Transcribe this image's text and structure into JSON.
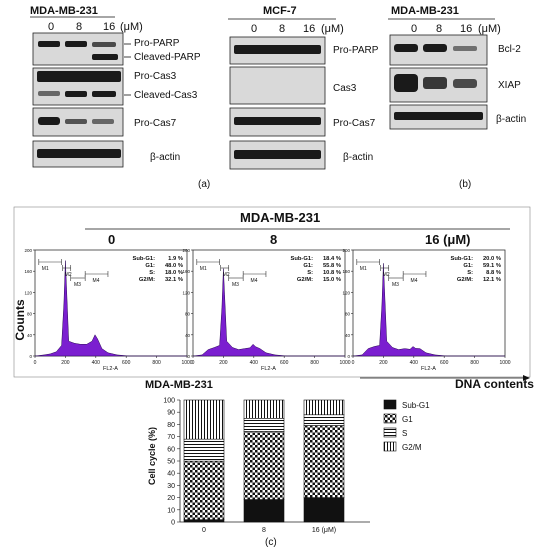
{
  "panel_a": {
    "title": "MDA-MB-231",
    "doses": [
      "0",
      "8",
      "16"
    ],
    "unit": "(μM)",
    "labels": {
      "pro_parp": "Pro-PARP",
      "cleaved_parp": "Cleaved-PARP",
      "pro_cas3": "Pro-Cas3",
      "cleaved_cas3": "Cleaved-Cas3",
      "pro_cas7": "Pro-Cas7",
      "beta_actin": "β-actin"
    },
    "caption": "(a)"
  },
  "panel_mcf7": {
    "title": "MCF-7",
    "doses": [
      "0",
      "8",
      "16"
    ],
    "unit": "(μM)",
    "labels": {
      "pro_parp": "Pro-PARP",
      "cas3": "Cas3",
      "pro_cas7": "Pro-Cas7",
      "beta_actin": "β-actin"
    }
  },
  "panel_b": {
    "title": "MDA-MB-231",
    "doses": [
      "0",
      "8",
      "16"
    ],
    "unit": "(μM)",
    "labels": {
      "bcl2": "Bcl-2",
      "xiap": "XIAP",
      "beta_actin": "β-actin"
    },
    "caption": "(b)"
  },
  "panel_c_flow": {
    "title": "MDA-MB-231",
    "y_label": "Counts",
    "x_label": "DNA contents",
    "sub_label": "MDA-MB-231",
    "fl_label": "FL2-A",
    "gate_labels": [
      "M1",
      "M2",
      "M3",
      "M4"
    ],
    "x_ticks": [
      "0",
      "200",
      "400",
      "600",
      "800",
      "1000"
    ],
    "y_ticks": [
      "0",
      "40",
      "80",
      "120",
      "160",
      "200"
    ],
    "histograms": [
      {
        "dose": "0",
        "stats": [
          [
            "Sub-G1:",
            "1.9 %"
          ],
          [
            "G1:",
            "48.0 %"
          ],
          [
            "S:",
            "18.0 %"
          ],
          [
            "G2/M:",
            "32.1 %"
          ]
        ]
      },
      {
        "dose": "8",
        "stats": [
          [
            "Sub-G1:",
            "18.4 %"
          ],
          [
            "G1:",
            "55.8 %"
          ],
          [
            "S:",
            "10.8 %"
          ],
          [
            "G2/M:",
            "15.0 %"
          ]
        ]
      },
      {
        "dose": "16 (μM)",
        "stats": [
          [
            "Sub-G1:",
            "20.0 %"
          ],
          [
            "G1:",
            "59.1 %"
          ],
          [
            "S:",
            "8.8 %"
          ],
          [
            "G2/M:",
            "12.1 %"
          ]
        ]
      }
    ]
  },
  "chart_data": {
    "type": "bar",
    "stacked": true,
    "categories": [
      "0",
      "8",
      "16 (μM)"
    ],
    "ylabel": "Cell cycle (%)",
    "ylim": [
      0,
      100
    ],
    "yticks": [
      "0",
      "10",
      "20",
      "30",
      "40",
      "50",
      "60",
      "70",
      "80",
      "90",
      "100"
    ],
    "legend_position": "right",
    "series": [
      {
        "name": "Sub-G1",
        "values": [
          1.9,
          18.4,
          20.0
        ]
      },
      {
        "name": "G1",
        "values": [
          48.0,
          55.8,
          59.1
        ]
      },
      {
        "name": "S",
        "values": [
          18.0,
          10.8,
          8.8
        ]
      },
      {
        "name": "G2/M",
        "values": [
          32.1,
          15.0,
          12.1
        ]
      }
    ]
  },
  "caption_c": "(c)"
}
